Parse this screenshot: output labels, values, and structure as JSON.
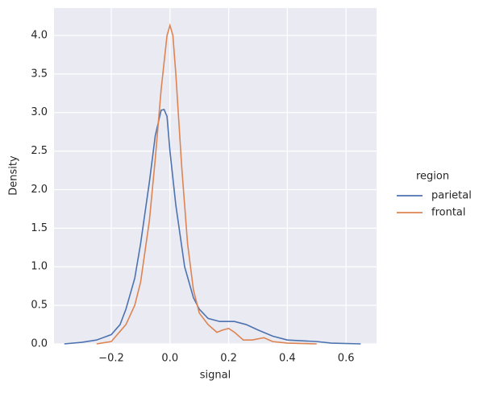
{
  "chart_data": {
    "type": "line",
    "x_label": "signal",
    "y_label": "Density",
    "legend_title": "region",
    "legend": "right",
    "grid": true,
    "background": "#eaeaf2",
    "xlim": [
      -0.395,
      0.704
    ],
    "ylim": [
      0,
      4.355
    ],
    "xticks": [
      {
        "value": -0.2,
        "label": "−0.2"
      },
      {
        "value": 0,
        "label": "0.0"
      },
      0.2,
      0.4,
      0.6
    ],
    "yticks": [
      {
        "value": 0,
        "label": "0.0"
      },
      0.5,
      {
        "value": 1,
        "label": "1.0"
      },
      1.5,
      {
        "value": 2,
        "label": "2.0"
      },
      2.5,
      {
        "value": 3,
        "label": "3.0"
      },
      3.5,
      {
        "value": 4,
        "label": "4.0"
      }
    ],
    "series": [
      {
        "name": "parietal",
        "color": "#4c72b0",
        "x": [
          -0.36,
          -0.3,
          -0.25,
          -0.2,
          -0.17,
          -0.15,
          -0.12,
          -0.1,
          -0.07,
          -0.05,
          -0.03,
          -0.02,
          -0.01,
          0,
          0.02,
          0.05,
          0.08,
          0.1,
          0.13,
          0.17,
          0.22,
          0.26,
          0.3,
          0.35,
          0.4,
          0.45,
          0.5,
          0.55,
          0.65
        ],
        "values": [
          0.0,
          0.02,
          0.05,
          0.12,
          0.25,
          0.45,
          0.85,
          1.3,
          2.1,
          2.7,
          3.03,
          3.04,
          2.95,
          2.5,
          1.8,
          1.0,
          0.6,
          0.45,
          0.33,
          0.29,
          0.29,
          0.25,
          0.18,
          0.1,
          0.05,
          0.04,
          0.03,
          0.01,
          0.0
        ]
      },
      {
        "name": "frontal",
        "color": "#dd8452",
        "x": [
          -0.25,
          -0.2,
          -0.15,
          -0.12,
          -0.1,
          -0.07,
          -0.05,
          -0.03,
          -0.01,
          0,
          0.01,
          0.02,
          0.04,
          0.06,
          0.08,
          0.1,
          0.13,
          0.16,
          0.18,
          0.2,
          0.22,
          0.25,
          0.28,
          0.32,
          0.35,
          0.4,
          0.5
        ],
        "values": [
          0.0,
          0.03,
          0.25,
          0.5,
          0.8,
          1.6,
          2.4,
          3.3,
          4.0,
          4.13,
          4.0,
          3.5,
          2.3,
          1.3,
          0.7,
          0.4,
          0.25,
          0.15,
          0.18,
          0.2,
          0.15,
          0.05,
          0.05,
          0.08,
          0.03,
          0.01,
          0.0
        ]
      }
    ]
  }
}
